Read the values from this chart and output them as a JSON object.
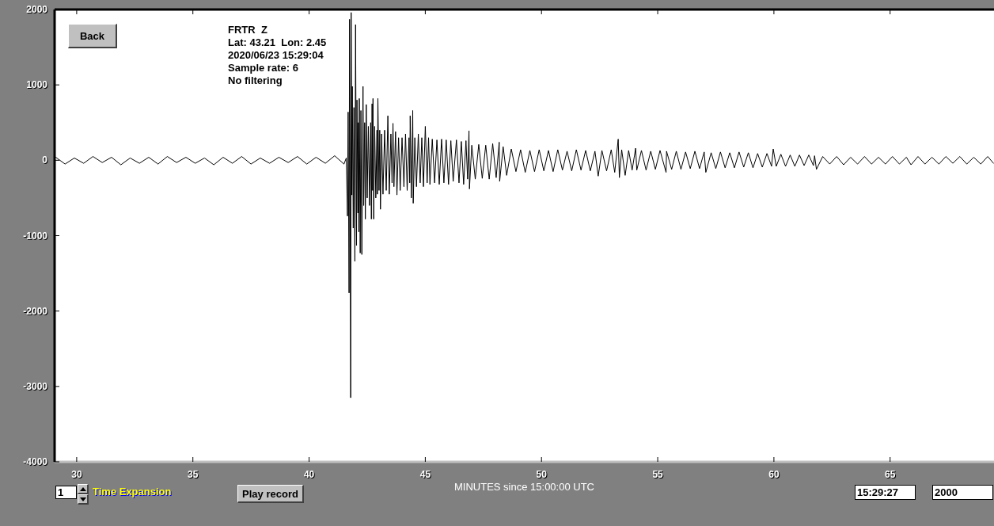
{
  "chart_data": {
    "type": "line",
    "xlabel": "MINUTES since 15:00:00 UTC",
    "annotations": [
      "FRTR  Z",
      "Lat: 43.21  Lon: 2.45",
      "2020/06/23 15:29:04",
      "Sample rate: 6",
      "No filtering",
      "Back",
      "1",
      "Time Expansion",
      "Play record",
      "15:29:27",
      "2000"
    ],
    "x": [
      29.1,
      29.5,
      29.9,
      30.3,
      30.7,
      31.1,
      31.5,
      31.9,
      32.3,
      32.7,
      33.1,
      33.5,
      33.9,
      34.3,
      34.7,
      35.1,
      35.5,
      35.9,
      36.3,
      36.7,
      37.1,
      37.5,
      37.9,
      38.3,
      38.7,
      39.1,
      39.5,
      39.9,
      40.3,
      40.7,
      41.1,
      41.5,
      41.6,
      41.65,
      41.68,
      41.72,
      41.74,
      41.79,
      41.81,
      41.84,
      41.86,
      41.9,
      41.93,
      41.97,
      42.0,
      42.04,
      42.06,
      42.1,
      42.12,
      42.14,
      42.16,
      42.2,
      42.23,
      42.27,
      42.32,
      42.35,
      42.39,
      42.42,
      42.46,
      42.5,
      42.55,
      42.6,
      42.65,
      42.68,
      42.71,
      42.73,
      42.75,
      42.78,
      42.82,
      42.87,
      42.92,
      42.94,
      42.96,
      43.01,
      43.04,
      43.07,
      43.12,
      43.18,
      43.25,
      43.32,
      43.39,
      43.45,
      43.52,
      43.57,
      43.61,
      43.65,
      43.72,
      43.78,
      43.85,
      43.92,
      44.0,
      44.08,
      44.15,
      44.22,
      44.3,
      44.33,
      44.35,
      44.4,
      44.46,
      44.48,
      44.55,
      44.62,
      44.7,
      44.78,
      44.85,
      44.92,
      45.0,
      45.08,
      45.14,
      45.2,
      45.3,
      45.4,
      45.5,
      45.6,
      45.7,
      45.8,
      45.9,
      46.0,
      46.1,
      46.2,
      46.34,
      46.45,
      46.55,
      46.65,
      46.75,
      46.82,
      46.88,
      46.9,
      47.0,
      47.15,
      47.3,
      47.45,
      47.6,
      47.75,
      47.9,
      48.05,
      48.18,
      48.2,
      48.35,
      48.5,
      48.7,
      48.9,
      49.1,
      49.3,
      49.5,
      49.7,
      49.9,
      50.1,
      50.3,
      50.5,
      50.7,
      50.9,
      51.1,
      51.3,
      51.5,
      51.7,
      51.9,
      52.1,
      52.3,
      52.44,
      52.6,
      52.8,
      53.0,
      53.15,
      53.3,
      53.35,
      53.45,
      53.6,
      53.75,
      53.9,
      54.05,
      54.1,
      54.3,
      54.5,
      54.7,
      54.9,
      55.1,
      55.36,
      55.38,
      55.6,
      55.8,
      56.0,
      56.2,
      56.4,
      56.6,
      56.8,
      57.0,
      57.07,
      57.3,
      57.5,
      57.7,
      57.9,
      58.1,
      58.3,
      58.5,
      58.7,
      58.9,
      59.1,
      59.3,
      59.5,
      59.7,
      59.9,
      59.97,
      60.1,
      60.3,
      60.5,
      60.7,
      60.9,
      61.1,
      61.3,
      61.5,
      61.7,
      61.75,
      61.83,
      62.1,
      62.4,
      62.7,
      63.0,
      63.3,
      63.6,
      63.9,
      64.2,
      64.5,
      64.8,
      65.1,
      65.4,
      65.7,
      65.9,
      66.2,
      66.5,
      66.8,
      67.1,
      67.4,
      67.7,
      68.0,
      68.3,
      68.6,
      68.9,
      69.2,
      69.45
    ],
    "values": [
      40,
      -50,
      30,
      -40,
      50,
      -30,
      40,
      -60,
      30,
      -40,
      40,
      -50,
      50,
      -30,
      40,
      -40,
      30,
      -60,
      40,
      -40,
      50,
      -50,
      30,
      -40,
      40,
      -30,
      50,
      -50,
      40,
      -40,
      60,
      -50,
      30,
      -740,
      640,
      -1760,
      1870,
      -3150,
      1960,
      -460,
      980,
      -900,
      700,
      -1340,
      1800,
      -1130,
      800,
      -700,
      500,
      -950,
      820,
      -1230,
      660,
      -1250,
      980,
      -600,
      500,
      -780,
      740,
      -500,
      450,
      -600,
      500,
      -780,
      750,
      -400,
      820,
      -780,
      450,
      -500,
      400,
      -450,
      820,
      -400,
      400,
      -650,
      350,
      -450,
      400,
      -400,
      590,
      -450,
      350,
      -300,
      490,
      -350,
      380,
      -460,
      300,
      -400,
      300,
      -350,
      350,
      -400,
      300,
      -300,
      590,
      -500,
      660,
      -570,
      300,
      -350,
      350,
      -300,
      300,
      -350,
      450,
      -300,
      300,
      -320,
      280,
      -300,
      270,
      -320,
      280,
      -300,
      270,
      -320,
      260,
      -280,
      270,
      -300,
      250,
      -320,
      260,
      -250,
      390,
      -380,
      200,
      -250,
      210,
      -240,
      200,
      -250,
      220,
      -230,
      240,
      -280,
      180,
      -200,
      150,
      -150,
      140,
      -160,
      130,
      -150,
      140,
      -140,
      130,
      -150,
      140,
      -130,
      120,
      -140,
      140,
      -130,
      130,
      -140,
      120,
      -210,
      130,
      -140,
      140,
      -160,
      280,
      -230,
      140,
      -200,
      130,
      -130,
      160,
      -130,
      130,
      -130,
      120,
      -120,
      130,
      -160,
      120,
      -120,
      120,
      -120,
      110,
      -110,
      120,
      -110,
      110,
      -160,
      100,
      -110,
      110,
      -100,
      100,
      -100,
      110,
      -90,
      100,
      -100,
      90,
      -90,
      90,
      -80,
      150,
      -80,
      80,
      -80,
      70,
      -80,
      70,
      -70,
      70,
      -70,
      60,
      -120,
      50,
      -50,
      50,
      -60,
      40,
      -50,
      50,
      -50,
      40,
      -50,
      50,
      -50,
      40,
      -60,
      50,
      -50,
      40,
      -50,
      50,
      -40,
      50,
      -50,
      40,
      -50,
      50,
      -40
    ],
    "color": "#000000",
    "marker": "none",
    "xlim": [
      29.05,
      69.47
    ],
    "xticks": [
      30,
      35,
      40,
      45,
      50,
      55,
      60,
      65
    ],
    "ylim": [
      -4000,
      2000
    ],
    "yticks": [
      -4000,
      -3000,
      -2000,
      -1000,
      0,
      1000,
      2000
    ]
  }
}
